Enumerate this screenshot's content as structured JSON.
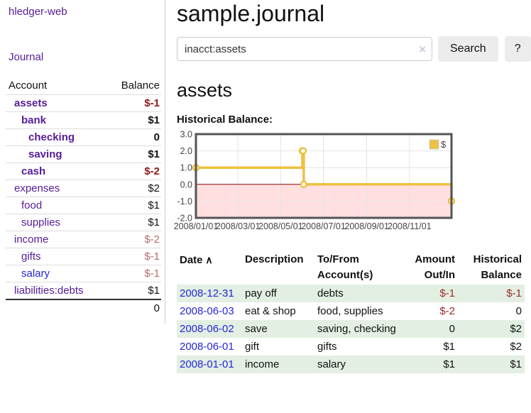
{
  "app": {
    "brand": "hledger-web",
    "nav": {
      "journal_label": "Journal"
    }
  },
  "sidebar": {
    "header": {
      "account": "Account",
      "balance": "Balance"
    },
    "accounts": [
      {
        "name": "assets",
        "indent": 0,
        "bold": true,
        "balance": "$-1",
        "balance_class": "neg-strong",
        "link_color": "purple"
      },
      {
        "name": "bank",
        "indent": 1,
        "bold": true,
        "balance": "$1",
        "balance_class": "",
        "link_color": "purple"
      },
      {
        "name": "checking",
        "indent": 2,
        "bold": true,
        "balance": "0",
        "balance_class": "",
        "link_color": "purple"
      },
      {
        "name": "saving",
        "indent": 2,
        "bold": true,
        "balance": "$1",
        "balance_class": "",
        "link_color": "purple"
      },
      {
        "name": "cash",
        "indent": 1,
        "bold": true,
        "balance": "$-2",
        "balance_class": "neg-strong",
        "link_color": "purple"
      },
      {
        "name": "expenses",
        "indent": 0,
        "bold": false,
        "balance": "$2",
        "balance_class": "",
        "link_color": "purple"
      },
      {
        "name": "food",
        "indent": 1,
        "bold": false,
        "balance": "$1",
        "balance_class": "",
        "link_color": "purple"
      },
      {
        "name": "supplies",
        "indent": 1,
        "bold": false,
        "balance": "$1",
        "balance_class": "",
        "link_color": "purple"
      },
      {
        "name": "income",
        "indent": 0,
        "bold": false,
        "balance": "$-2",
        "balance_class": "neg-soft",
        "link_color": "purple"
      },
      {
        "name": "gifts",
        "indent": 1,
        "bold": false,
        "balance": "$-1",
        "balance_class": "neg-soft",
        "link_color": "purple"
      },
      {
        "name": "salary",
        "indent": 1,
        "bold": false,
        "balance": "$-1",
        "balance_class": "neg-soft",
        "link_color": "blue"
      },
      {
        "name": "liabilities:debts",
        "indent": 0,
        "bold": false,
        "balance": "$1",
        "balance_class": "",
        "link_color": "purple"
      }
    ],
    "total": "0"
  },
  "header": {
    "title": "sample.journal"
  },
  "search": {
    "value": "inacct:assets",
    "clear_icon": "×",
    "search_button": "Search",
    "help_button": "?"
  },
  "account_page": {
    "title": "assets",
    "chart_label": "Historical Balance:"
  },
  "chart_data": {
    "type": "line",
    "step": true,
    "legend": [
      {
        "name": "$",
        "color": "#edc240"
      }
    ],
    "legend_position": "top-right",
    "series": [
      {
        "name": "$",
        "color": "#edc240",
        "points": [
          {
            "date": "2008-01-01",
            "value": 1
          },
          {
            "date": "2008-06-01",
            "value": 2
          },
          {
            "date": "2008-06-02",
            "value": 2
          },
          {
            "date": "2008-06-03",
            "value": 0
          },
          {
            "date": "2008-12-31",
            "value": -1
          }
        ]
      }
    ],
    "xlim": [
      "2008-01-01",
      "2008-12-31"
    ],
    "ylim": [
      -2,
      3
    ],
    "x_ticks": [
      {
        "label": "2008/01/01",
        "date": "2008-01-01"
      },
      {
        "label": "2008/03/01",
        "date": "2008-03-01"
      },
      {
        "label": "2008/05/01",
        "date": "2008-05-01"
      },
      {
        "label": "2008/07/01",
        "date": "2008-07-01"
      },
      {
        "label": "2008/09/01",
        "date": "2008-09-01"
      },
      {
        "label": "2008/11/01",
        "date": "2008-11-01"
      }
    ],
    "y_ticks": [
      {
        "label": "3.0",
        "value": 3
      },
      {
        "label": "2.0",
        "value": 2
      },
      {
        "label": "1.0",
        "value": 1
      },
      {
        "label": "0.0",
        "value": 0
      },
      {
        "label": "-1.0",
        "value": -1
      },
      {
        "label": "-2.0",
        "value": -2
      }
    ],
    "grid": true,
    "colors": {
      "line": "#edc240",
      "marker_fill": "#ffffff",
      "negative_region": "#ffdfdf",
      "zero_line": "#8b0000",
      "border": "#545454",
      "gridline": "#e4e4e4",
      "tick_text": "#454545"
    }
  },
  "register": {
    "columns": [
      {
        "line1": "Date",
        "line2": "",
        "align": "left",
        "sorted": true
      },
      {
        "line1": "Description",
        "line2": "",
        "align": "left",
        "sorted": false
      },
      {
        "line1": "To/From",
        "line2": "Account(s)",
        "align": "left",
        "sorted": false
      },
      {
        "line1": "Amount",
        "line2": "Out/In",
        "align": "right",
        "sorted": false
      },
      {
        "line1": "Historical",
        "line2": "Balance",
        "align": "right",
        "sorted": false
      }
    ],
    "sort_caret": "∧",
    "rows": [
      {
        "date": "2008-12-31",
        "description": "pay off",
        "accounts": "debts",
        "amount": "$-1",
        "amount_neg": true,
        "balance": "$-1",
        "balance_neg": true,
        "highlight": true
      },
      {
        "date": "2008-06-03",
        "description": "eat & shop",
        "accounts": "food, supplies",
        "amount": "$-2",
        "amount_neg": true,
        "balance": "0",
        "balance_neg": false,
        "highlight": false
      },
      {
        "date": "2008-06-02",
        "description": "save",
        "accounts": "saving, checking",
        "amount": "0",
        "amount_neg": false,
        "balance": "$2",
        "balance_neg": false,
        "highlight": true
      },
      {
        "date": "2008-06-01",
        "description": "gift",
        "accounts": "gifts",
        "amount": "$1",
        "amount_neg": false,
        "balance": "$2",
        "balance_neg": false,
        "highlight": false
      },
      {
        "date": "2008-01-01",
        "description": "income",
        "accounts": "salary",
        "amount": "$1",
        "amount_neg": false,
        "balance": "$1",
        "balance_neg": false,
        "highlight": true
      }
    ]
  }
}
